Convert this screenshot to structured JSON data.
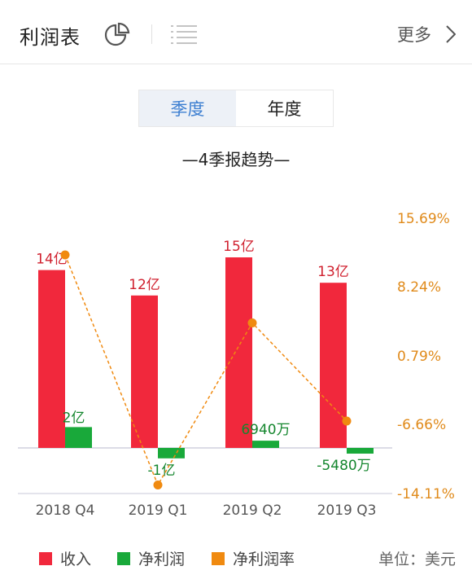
{
  "header": {
    "title": "利润表",
    "more_label": "更多"
  },
  "tabs": [
    {
      "label": "季度",
      "active": true
    },
    {
      "label": "年度",
      "active": false
    }
  ],
  "chart_title": "—4季报趋势—",
  "colors": {
    "revenue": "#f1283c",
    "net_profit": "#19a93a",
    "margin": "#f08a10",
    "tab_active": "#3d7fd1"
  },
  "legend": {
    "revenue": "收入",
    "net_profit": "净利润",
    "margin": "净利润率",
    "unit": "单位：美元"
  },
  "chart_data": {
    "type": "bar",
    "categories": [
      "2018 Q4",
      "2019 Q1",
      "2019 Q2",
      "2019 Q3"
    ],
    "series": [
      {
        "name": "收入",
        "values": [
          1.4,
          1.2,
          1.5,
          1.3
        ],
        "labels": [
          "14亿",
          "12亿",
          "15亿",
          "13亿"
        ]
      },
      {
        "name": "净利润",
        "values": [
          0.2,
          -0.1,
          0.0694,
          -0.0548
        ],
        "labels": [
          "2亿",
          "-1亿",
          "6940万",
          "-5480万"
        ]
      },
      {
        "name": "净利润率",
        "type": "line",
        "values": [
          0.1172,
          -0.1318,
          0.0436,
          -0.0626
        ]
      }
    ],
    "right_axis_ticks": [
      "15.69%",
      "8.24%",
      "0.79%",
      "-6.66%",
      "-14.11%"
    ],
    "right_axis_range": [
      -0.1411,
      0.1569
    ]
  }
}
